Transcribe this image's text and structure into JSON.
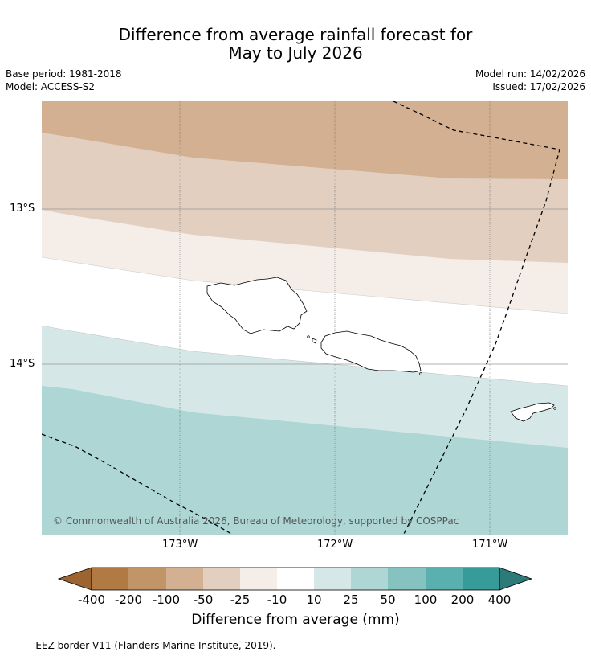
{
  "title": {
    "line1": "Difference from average rainfall forecast for",
    "line2": "May to July 2026"
  },
  "meta": {
    "base_period": "Base period: 1981-2018",
    "model": "Model: ACCESS-S2",
    "model_run": "Model run: 14/02/2026",
    "issued": "Issued: 17/02/2026"
  },
  "map": {
    "lat_labels": [
      "13°S",
      "14°S"
    ],
    "lon_labels": [
      "173°W",
      "172°W",
      "171°W"
    ],
    "copyright": "© Commonwealth of Australia 2026, Bureau of Meteorology, supported by COSPPac",
    "islands": [
      "Savai'i",
      "Upolu",
      "Tutuila"
    ],
    "bands_mm": [
      "-100 to -50",
      "-50 to -25",
      "-25 to -10",
      "-10 to 10",
      "10 to 25",
      "25 to 50"
    ]
  },
  "colorbar": {
    "title": "Difference from average (mm)",
    "ticks": [
      "-400",
      "-200",
      "-100",
      "-50",
      "-25",
      "-10",
      "10",
      "25",
      "50",
      "100",
      "200",
      "400"
    ],
    "colors": [
      "#9c6430",
      "#b07a42",
      "#c29568",
      "#d2b091",
      "#e2cfbf",
      "#f4ede8",
      "#ffffff",
      "#d5e8e7",
      "#aed6d5",
      "#86c2c0",
      "#5ab0ae",
      "#379b99",
      "#2c7b79"
    ]
  },
  "footnote": "--  --  -- EEZ border V11 (Flanders Marine Institute, 2019)."
}
